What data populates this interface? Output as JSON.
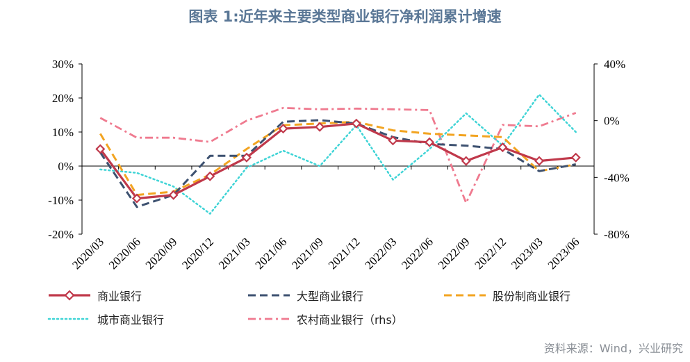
{
  "title": "图表 1:近年来主要类型商业银行净利润累计增速",
  "source": "资料来源：Wind，兴业研究",
  "chart_data": {
    "type": "line",
    "categories": [
      "2020/03",
      "2020/06",
      "2020/09",
      "2020/12",
      "2021/03",
      "2021/06",
      "2021/09",
      "2021/12",
      "2022/03",
      "2022/06",
      "2022/09",
      "2022/12",
      "2023/03",
      "2023/06"
    ],
    "left_axis": {
      "ylim": [
        -20,
        30
      ],
      "ticks": [
        30,
        20,
        10,
        0,
        -10,
        -20
      ],
      "tick_labels": [
        "30%",
        "20%",
        "10%",
        "0%",
        "-10%",
        "-20%"
      ]
    },
    "right_axis": {
      "ylim": [
        -80,
        40
      ],
      "ticks": [
        40,
        0,
        -40,
        -80
      ],
      "tick_labels": [
        "40%",
        "0%",
        "-40%",
        "-80%"
      ]
    },
    "series": [
      {
        "name": "商业银行",
        "axis": "left",
        "color": "#c0394b",
        "style": "solid-diamond",
        "values": [
          5.0,
          -9.5,
          -8.5,
          -3.0,
          2.5,
          11.0,
          11.5,
          12.5,
          7.5,
          7.0,
          1.5,
          5.5,
          1.5,
          2.5
        ]
      },
      {
        "name": "大型商业银行",
        "axis": "left",
        "color": "#3d5170",
        "style": "dash",
        "values": [
          4.0,
          -12.0,
          -8.5,
          3.0,
          3.0,
          13.0,
          13.5,
          12.5,
          8.5,
          6.5,
          6.0,
          5.0,
          -1.5,
          0.5
        ]
      },
      {
        "name": "股份制商业银行",
        "axis": "left",
        "color": "#f2a421",
        "style": "dash",
        "values": [
          9.5,
          -8.5,
          -7.5,
          -2.5,
          5.0,
          12.0,
          12.5,
          13.0,
          10.5,
          9.5,
          9.0,
          8.5,
          -1.5,
          0.5
        ]
      },
      {
        "name": "城市商业银行",
        "axis": "left",
        "color": "#3fd4d6",
        "style": "dot",
        "values": [
          -1.0,
          -2.0,
          -6.0,
          -14.0,
          -0.5,
          4.5,
          0.0,
          12.0,
          -4.0,
          5.0,
          15.5,
          6.0,
          21.0,
          10.0
        ]
      },
      {
        "name": "农村商业银行（rhs）",
        "axis": "right",
        "color": "#ef7a8f",
        "style": "dash-dot",
        "values": [
          2.0,
          -12.0,
          -12.0,
          -15.0,
          0.0,
          9.0,
          8.0,
          8.5,
          8.0,
          7.5,
          -58.0,
          -3.0,
          -4.0,
          5.5
        ]
      }
    ]
  }
}
